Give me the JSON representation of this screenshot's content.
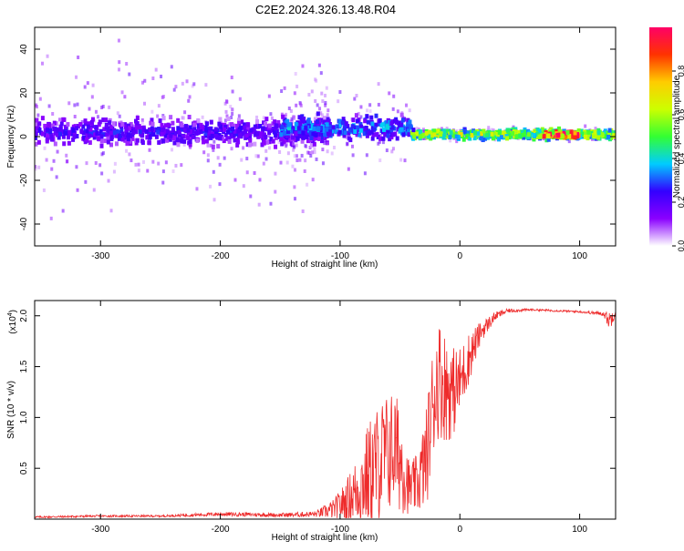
{
  "title": "C2E2.2024.326.13.48.R04",
  "colors": {
    "snr_line": "#ee2a2a",
    "spectrogram_palette": [
      "#ffffff",
      "#8a00ff",
      "#3300ff",
      "#00ccff",
      "#33ff33",
      "#ccff00",
      "#ffcc00",
      "#ff3300",
      "#ff0066"
    ]
  },
  "chart_data": [
    {
      "id": "spectrogram",
      "type": "heatmap",
      "xlabel": "Height of straight line (km)",
      "ylabel": "Frequency (Hz)",
      "xlim": [
        -355,
        130
      ],
      "ylim": [
        -50,
        50
      ],
      "xticks": [
        -300,
        -200,
        -100,
        0,
        100
      ],
      "xtick_labels": [
        "-300",
        "-200",
        "-100",
        "0",
        "100"
      ],
      "yticks": [
        -40,
        -20,
        0,
        20,
        40
      ],
      "ytick_labels": [
        "-40",
        "-20",
        "0",
        "20",
        "40"
      ],
      "grid": false,
      "colorbar": {
        "label": "Normalized spectral amplitude",
        "range": [
          0,
          1
        ],
        "ticks": [
          0,
          0.2,
          0.4,
          0.6,
          0.8
        ],
        "tick_labels": [
          "0.0",
          "0.2",
          "0.4",
          "0.6",
          "0.8"
        ]
      },
      "regions": [
        {
          "x_range": [
            -355,
            -110
          ],
          "center_hz": 2,
          "band_hz": 8,
          "amplitude": 0.25,
          "scatter_hz": 48
        },
        {
          "x_range": [
            -150,
            -40
          ],
          "center_hz": 4,
          "band_hz": 7,
          "amplitude": 0.35,
          "scatter_hz": 30
        },
        {
          "x_range": [
            -40,
            130
          ],
          "center_hz": 1,
          "band_hz": 3,
          "amplitude": 0.6,
          "scatter_hz": 4
        },
        {
          "x_range": [
            70,
            100
          ],
          "center_hz": 1,
          "band_hz": 2,
          "amplitude": 0.95,
          "scatter_hz": 1
        }
      ]
    },
    {
      "id": "snr",
      "type": "line",
      "xlabel": "Height of straight line (km)",
      "ylabel": "SNR (10 * v/v)",
      "y_multiplier": "(x10",
      "y_multiplier_exp": "4",
      "xlim": [
        -355,
        130
      ],
      "ylim": [
        0,
        2.15
      ],
      "xticks": [
        -300,
        -200,
        -100,
        0,
        100
      ],
      "xtick_labels": [
        "-300",
        "-200",
        "-100",
        "0",
        "100"
      ],
      "yticks": [
        0.5,
        1.0,
        1.5,
        2.0
      ],
      "ytick_labels": [
        "0.5",
        "1.0",
        "1.5",
        "2.0"
      ],
      "grid": false,
      "series": [
        {
          "x": [
            -355,
            -300,
            -250,
            -200,
            -150,
            -120,
            -105,
            -95,
            -85,
            -75,
            -65,
            -55,
            -48,
            -42,
            -35,
            -28,
            -22,
            -18,
            -12,
            -6,
            0,
            8,
            18,
            30,
            40,
            60,
            80,
            100,
            120,
            125,
            130
          ],
          "y": [
            0.02,
            0.03,
            0.03,
            0.05,
            0.04,
            0.05,
            0.1,
            0.18,
            0.3,
            0.45,
            0.6,
            0.7,
            0.55,
            0.3,
            0.35,
            0.6,
            1.2,
            1.4,
            1.3,
            1.25,
            1.35,
            1.6,
            1.85,
            2.0,
            2.05,
            2.06,
            2.05,
            2.04,
            2.02,
            1.95,
            2.05
          ],
          "noise": [
            0.01,
            0.01,
            0.01,
            0.02,
            0.02,
            0.03,
            0.1,
            0.2,
            0.35,
            0.55,
            0.6,
            0.6,
            0.5,
            0.25,
            0.3,
            0.5,
            0.6,
            0.6,
            0.55,
            0.45,
            0.35,
            0.25,
            0.1,
            0.04,
            0.02,
            0.01,
            0.01,
            0.01,
            0.02,
            0.1,
            0.05
          ]
        }
      ]
    }
  ]
}
